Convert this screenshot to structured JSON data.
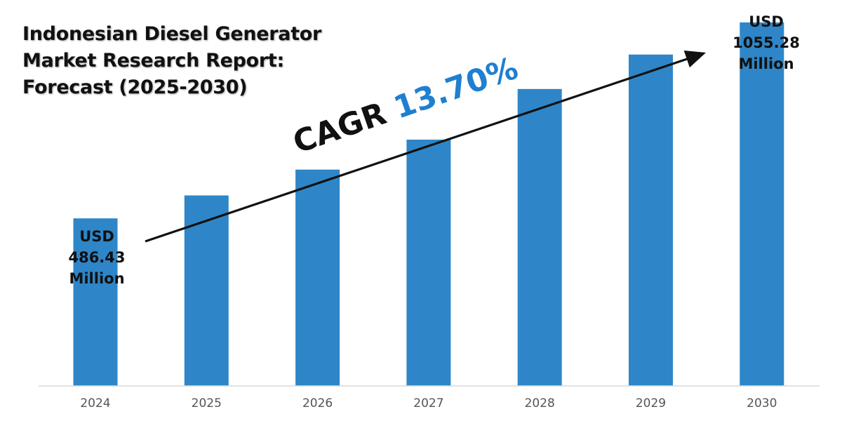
{
  "title": {
    "line1": "Indonesian Diesel Generator",
    "line2": "Market Research Report:",
    "line3": "Forecast (2025-2030)"
  },
  "cagr": {
    "label": "CAGR",
    "value": "13.70%"
  },
  "callouts": {
    "start": {
      "line1": "USD",
      "line2": "486.43",
      "line3": "Million"
    },
    "end": {
      "line1": "USD",
      "line2": "1055.28",
      "line3": "Million"
    }
  },
  "colors": {
    "bar": "#2e86c8",
    "axis": "#d9d9d9",
    "tick_text": "#555555",
    "arrow": "#111111"
  },
  "chart_data": {
    "type": "bar",
    "title": "Indonesian Diesel Generator Market Research Report: Forecast (2025-2030)",
    "categories": [
      "2024",
      "2025",
      "2026",
      "2027",
      "2028",
      "2029",
      "2030"
    ],
    "values": [
      486.43,
      553,
      628,
      715,
      862,
      962,
      1055.28
    ],
    "unit": "USD Million",
    "xlabel": "",
    "ylabel": "",
    "ylim": [
      0,
      1100
    ],
    "grid": false,
    "annotations": [
      "CAGR 13.70%"
    ]
  }
}
